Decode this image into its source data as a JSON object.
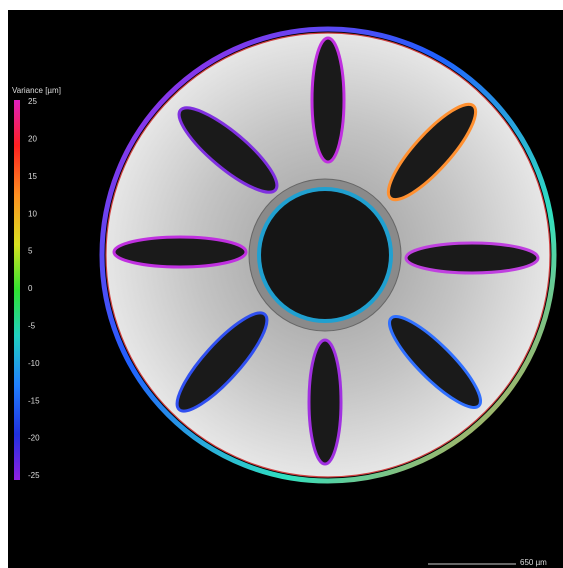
{
  "legend": {
    "title": "Variance [µm]",
    "ticks": [
      25,
      20,
      15,
      10,
      5,
      0,
      -5,
      -10,
      -15,
      -20,
      -25
    ]
  },
  "scale_bar": {
    "label": "650 µm"
  }
}
